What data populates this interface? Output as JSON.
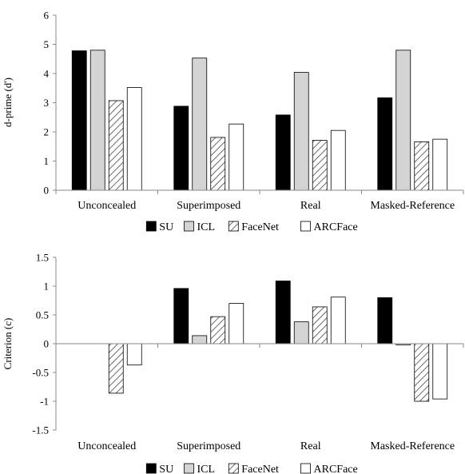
{
  "chart_data": [
    {
      "type": "bar",
      "ylabel": "d-prime (d')",
      "ylim": [
        0,
        6
      ],
      "ytick_step": 1,
      "yticks": [
        "0",
        "1",
        "2",
        "3",
        "4",
        "5",
        "6"
      ],
      "categories": [
        "Unconcealed",
        "Superimposed",
        "Real",
        "Masked-Reference"
      ],
      "series": [
        {
          "name": "SU",
          "values": [
            4.78,
            2.88,
            2.58,
            3.17
          ]
        },
        {
          "name": "ICL",
          "values": [
            4.8,
            4.53,
            4.04,
            4.8
          ]
        },
        {
          "name": "FaceNet",
          "values": [
            3.07,
            1.81,
            1.71,
            1.66
          ]
        },
        {
          "name": "ARCFace",
          "values": [
            3.52,
            2.27,
            2.05,
            1.75
          ]
        }
      ],
      "legend": "bottom",
      "grid": false
    },
    {
      "type": "bar",
      "ylabel": "Criterion (c)",
      "ylim": [
        -1.5,
        1.5
      ],
      "ytick_step": 0.5,
      "yticks": [
        "-1.5",
        "-1",
        "-0.5",
        "0",
        "0.5",
        "1",
        "1.5"
      ],
      "categories": [
        "Unconcealed",
        "Superimposed",
        "Real",
        "Masked-Reference"
      ],
      "series": [
        {
          "name": "SU",
          "values": [
            0,
            0.96,
            1.09,
            0.8
          ]
        },
        {
          "name": "ICL",
          "values": [
            0,
            0.14,
            0.38,
            -0.02
          ]
        },
        {
          "name": "FaceNet",
          "values": [
            -0.86,
            0.47,
            0.64,
            -1.0
          ]
        },
        {
          "name": "ARCFace",
          "values": [
            -0.37,
            0.7,
            0.81,
            -0.96
          ]
        }
      ],
      "legend": "bottom",
      "grid": false
    }
  ],
  "styles": {
    "series_fill": {
      "SU": "#000000",
      "ICL": "#d4d4d4",
      "FaceNet": "hatch",
      "ARCFace": "#ffffff"
    },
    "axis_color": "#888888"
  }
}
